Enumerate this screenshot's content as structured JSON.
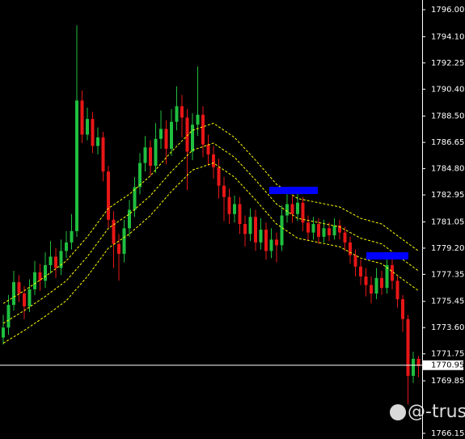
{
  "chart_data": {
    "type": "candlestick",
    "ylim": [
      1766.15,
      1796
    ],
    "yticks": [
      {
        "value": 1796,
        "label": "1796.00"
      },
      {
        "value": 1794.1,
        "label": "1794.10"
      },
      1792.25,
      {
        "value": 1790.4,
        "label": "1790.40"
      },
      {
        "value": 1788.5,
        "label": "1788.50"
      },
      1786.65,
      {
        "value": 1784.8,
        "label": "1784.80"
      },
      1782.95,
      1781.05,
      {
        "value": 1779.2,
        "label": "1779.20"
      },
      1777.35,
      1775.45,
      {
        "value": 1773.6,
        "label": "1773.60"
      },
      1771.75,
      1769.85,
      1766.15
    ],
    "up_color": "#1fbf3f",
    "down_color": "#e81616",
    "open": [
      1772.9,
      1773.6,
      1775.2,
      1776.8,
      1776.0,
      1775.1,
      1776.3,
      1777.5,
      1776.9,
      1778.0,
      1778.6,
      1777.8,
      1779.0,
      1779.6,
      1780.4,
      1789.6,
      1787.2,
      1788.3,
      1786.4,
      1787.0,
      1784.6,
      1781.2,
      1779.5,
      1778.8,
      1780.6,
      1781.9,
      1783.5,
      1785.2,
      1786.3,
      1785.0,
      1786.9,
      1787.6,
      1786.2,
      1788.1,
      1789.2,
      1788.4,
      1786.0,
      1787.9,
      1788.6,
      1786.5,
      1785.8,
      1784.9,
      1783.6,
      1782.8,
      1781.6,
      1782.3,
      1780.9,
      1780.2,
      1781.4,
      1779.6,
      1780.5,
      1779.0,
      1779.8,
      1779.4,
      1781.5,
      1782.3,
      1781.6,
      1782.4,
      1781.0,
      1780.3,
      1780.9,
      1780.0,
      1780.6,
      1780.1,
      1780.8,
      1780.3,
      1779.6,
      1778.7,
      1777.9,
      1777.2,
      1776.6,
      1776.0,
      1777.1,
      1776.4,
      1778.0,
      1776.9,
      1775.6,
      1774.2,
      1770.2,
      1771.4
    ],
    "high": [
      1774.5,
      1775.9,
      1777.6,
      1777.3,
      1776.5,
      1777.0,
      1778.3,
      1778.1,
      1778.9,
      1779.7,
      1779.2,
      1779.8,
      1780.4,
      1781.6,
      1794.9,
      1790.3,
      1789.1,
      1788.8,
      1787.7,
      1787.4,
      1785.0,
      1781.8,
      1780.2,
      1781.2,
      1782.6,
      1784.2,
      1785.9,
      1787.1,
      1786.8,
      1788.0,
      1788.9,
      1788.2,
      1789.0,
      1790.6,
      1790.0,
      1789.0,
      1788.7,
      1792.0,
      1789.2,
      1787.2,
      1786.4,
      1785.5,
      1784.2,
      1783.4,
      1782.9,
      1782.8,
      1781.5,
      1782.0,
      1781.9,
      1781.3,
      1781.0,
      1780.6,
      1780.3,
      1782.2,
      1783.0,
      1782.9,
      1783.2,
      1782.8,
      1781.5,
      1781.4,
      1781.3,
      1781.2,
      1781.0,
      1781.3,
      1781.2,
      1780.7,
      1780.0,
      1779.1,
      1778.4,
      1777.8,
      1777.2,
      1777.8,
      1777.6,
      1778.7,
      1778.4,
      1777.2,
      1775.9,
      1774.5,
      1771.9,
      1771.6
    ],
    "low": [
      1772.4,
      1773.1,
      1774.8,
      1775.4,
      1774.2,
      1774.7,
      1775.9,
      1776.2,
      1776.4,
      1777.4,
      1777.1,
      1777.3,
      1778.5,
      1779.1,
      1780.0,
      1786.6,
      1786.8,
      1785.9,
      1785.8,
      1783.9,
      1780.6,
      1777.8,
      1776.9,
      1778.2,
      1780.0,
      1781.4,
      1783.0,
      1784.6,
      1784.3,
      1784.5,
      1786.2,
      1785.1,
      1785.7,
      1787.5,
      1787.0,
      1783.3,
      1785.4,
      1787.1,
      1785.6,
      1785.0,
      1784.1,
      1782.7,
      1781.1,
      1780.9,
      1781.0,
      1780.2,
      1779.3,
      1779.7,
      1779.0,
      1779.1,
      1778.4,
      1778.5,
      1778.2,
      1779.0,
      1781.0,
      1781.0,
      1781.1,
      1780.4,
      1779.7,
      1779.8,
      1779.5,
      1779.6,
      1779.7,
      1779.8,
      1779.8,
      1779.0,
      1778.1,
      1777.2,
      1776.6,
      1775.8,
      1775.3,
      1775.6,
      1775.9,
      1776.0,
      1776.3,
      1775.0,
      1773.3,
      1768.2,
      1769.7,
      1770.1
    ],
    "close": [
      1773.6,
      1775.2,
      1776.8,
      1776.0,
      1775.1,
      1776.3,
      1777.5,
      1776.9,
      1778.0,
      1778.6,
      1777.8,
      1779.0,
      1779.6,
      1780.4,
      1789.6,
      1787.2,
      1788.3,
      1786.4,
      1787.0,
      1784.6,
      1781.2,
      1779.5,
      1778.8,
      1780.6,
      1781.9,
      1783.5,
      1785.2,
      1786.3,
      1785.0,
      1786.9,
      1787.6,
      1786.2,
      1788.1,
      1789.2,
      1788.4,
      1786.0,
      1787.9,
      1788.6,
      1786.5,
      1785.8,
      1784.9,
      1783.6,
      1782.8,
      1781.6,
      1782.3,
      1780.9,
      1780.2,
      1781.4,
      1779.6,
      1780.5,
      1779.0,
      1779.8,
      1779.4,
      1781.5,
      1782.3,
      1781.6,
      1782.4,
      1781.0,
      1780.3,
      1780.9,
      1780.0,
      1780.6,
      1780.1,
      1780.8,
      1780.3,
      1779.6,
      1778.7,
      1777.9,
      1777.2,
      1776.6,
      1776.0,
      1777.1,
      1776.4,
      1778.0,
      1776.9,
      1775.6,
      1774.2,
      1770.2,
      1771.4,
      1770.9
    ],
    "envelope_color": "#ffff00",
    "envelopes": [
      {
        "x": [
          0,
          4,
          8,
          12,
          16,
          20,
          24,
          28,
          32,
          36,
          40,
          44,
          48,
          52,
          56,
          60,
          64,
          68,
          72,
          76,
          79
        ],
        "values": [
          1775.3,
          1776.2,
          1777.2,
          1778.3,
          1780.0,
          1782.0,
          1783.0,
          1784.3,
          1786.0,
          1787.5,
          1788.0,
          1787.0,
          1785.4,
          1783.7,
          1782.7,
          1782.4,
          1782.1,
          1781.3,
          1780.9,
          1779.8,
          1779.0
        ]
      },
      {
        "x": [
          0,
          4,
          8,
          12,
          16,
          20,
          24,
          28,
          32,
          36,
          40,
          44,
          48,
          52,
          56,
          60,
          64,
          68,
          72,
          76,
          79
        ],
        "values": [
          1773.9,
          1774.8,
          1775.8,
          1776.9,
          1778.6,
          1780.6,
          1781.6,
          1782.9,
          1784.6,
          1786.1,
          1786.6,
          1785.6,
          1784.0,
          1782.3,
          1781.3,
          1781.0,
          1780.7,
          1779.9,
          1779.5,
          1778.4,
          1777.6
        ]
      },
      {
        "x": [
          0,
          4,
          8,
          12,
          16,
          20,
          24,
          28,
          32,
          36,
          40,
          44,
          48,
          52,
          56,
          60,
          64,
          68,
          72,
          76,
          79
        ],
        "values": [
          1772.5,
          1773.4,
          1774.4,
          1775.5,
          1777.2,
          1779.2,
          1780.2,
          1781.5,
          1783.2,
          1784.7,
          1785.2,
          1784.2,
          1782.6,
          1780.9,
          1779.9,
          1779.6,
          1779.3,
          1778.5,
          1778.1,
          1777.0,
          1776.2
        ]
      }
    ],
    "current_price": 1770.95,
    "watermark": "@-trust"
  }
}
